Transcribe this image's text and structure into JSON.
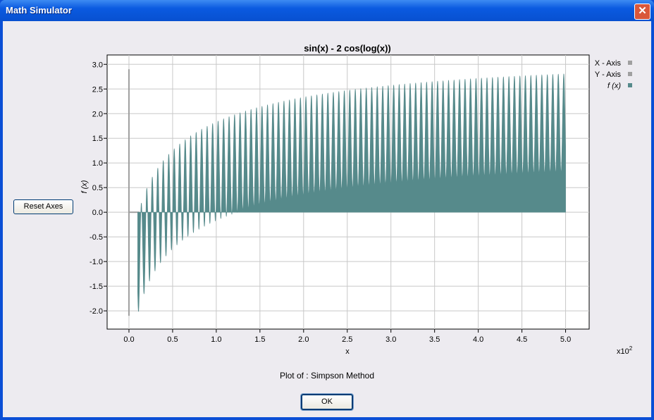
{
  "window": {
    "title": "Math Simulator",
    "close_icon": "close-icon"
  },
  "reset_button": "Reset Axes",
  "ok_button": "OK",
  "caption": "Plot of : Simpson Method",
  "chart_data": {
    "type": "area",
    "title": "sin(x) - 2 cos(log(x))",
    "xlabel": "x",
    "ylabel": "f (x)",
    "x_multiplier": "x10",
    "x_multiplier_exp": "2",
    "xlim": [
      -0.25,
      5.27
    ],
    "ylim": [
      -2.37,
      3.19
    ],
    "data_x_range": [
      0.1,
      5.0
    ],
    "grid": true,
    "xticks": [
      "0.0",
      "0.5",
      "1.0",
      "1.5",
      "2.0",
      "2.5",
      "3.0",
      "3.5",
      "4.0",
      "4.5",
      "5.0"
    ],
    "yticks": [
      "-2.0",
      "-1.5",
      "-1.0",
      "-0.5",
      "0.0",
      "0.5",
      "1.0",
      "1.5",
      "2.0",
      "2.5",
      "3.0"
    ],
    "legend": {
      "placement": "right",
      "items": [
        {
          "label": "X - Axis",
          "color": "#a0a0a0"
        },
        {
          "label": "Y - Axis",
          "color": "#a0a0a0"
        },
        {
          "label": "f (x)",
          "color": "#568a8b"
        }
      ]
    },
    "series_color": "#568a8b"
  }
}
